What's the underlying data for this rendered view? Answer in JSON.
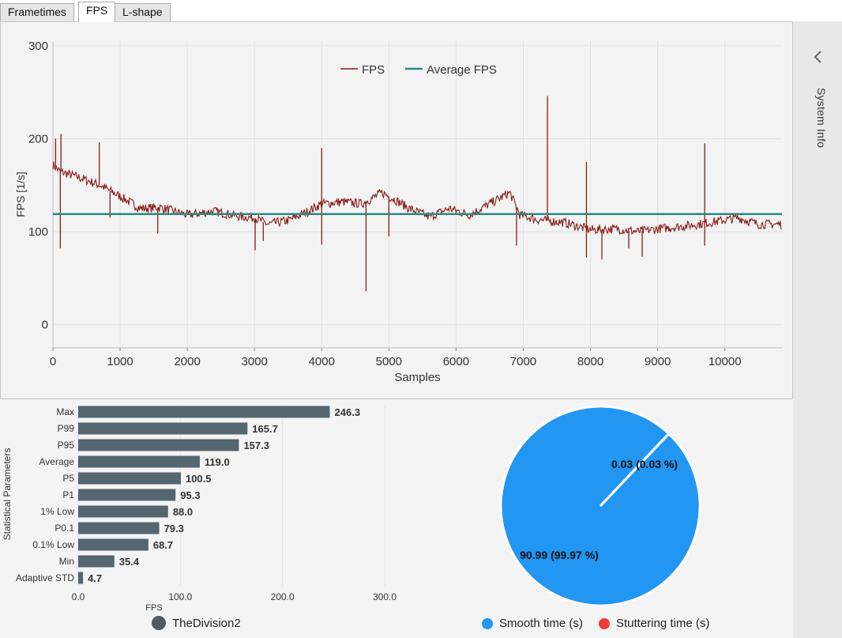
{
  "tabs": [
    {
      "label": "Frametimes",
      "active": false
    },
    {
      "label": "FPS",
      "active": true
    },
    {
      "label": "L-shape",
      "active": false
    }
  ],
  "side_panel": {
    "label": "System Info",
    "icon": "chevron-left-icon"
  },
  "colors": {
    "fps_line": "#8b1a1a",
    "average_line": "#2a8a80",
    "bar": "#546670",
    "smooth": "#2196f3",
    "stutter": "#ef3b36",
    "session_dot": "#4f5b62"
  },
  "chart_data": [
    {
      "id": "fps_timeline",
      "type": "line",
      "xlabel": "Samples",
      "ylabel": "FPS [1/s]",
      "xlim": [
        0,
        10850
      ],
      "ylim": [
        -25,
        305
      ],
      "xticks": [
        0,
        1000,
        2000,
        3000,
        4000,
        5000,
        6000,
        7000,
        8000,
        9000,
        10000
      ],
      "yticks": [
        0,
        100,
        200,
        300
      ],
      "grid": true,
      "legend_position": "top-center",
      "series": [
        {
          "name": "FPS",
          "style": "line",
          "approx_trend": {
            "x": [
              0,
              100,
              400,
              700,
              1000,
              1300,
              1600,
              2000,
              2400,
              2800,
              3000,
              3200,
              3500,
              3800,
              4000,
              4300,
              4600,
              4900,
              5100,
              5300,
              5600,
              5900,
              6200,
              6500,
              6800,
              6950,
              7200,
              7600,
              8000,
              8400,
              8700,
              9000,
              9400,
              9800,
              10200,
              10500,
              10850
            ],
            "y": [
              172,
              165,
              158,
              150,
              138,
              125,
              126,
              118,
              122,
              116,
              115,
              108,
              112,
              122,
              130,
              132,
              130,
              142,
              134,
              125,
              116,
              125,
              118,
              130,
              142,
              118,
              113,
              110,
              102,
              103,
              100,
              103,
              106,
              110,
              115,
              108,
              108
            ]
          },
          "spikes": [
            {
              "x": 40,
              "y": 200
            },
            {
              "x": 120,
              "y": 205
            },
            {
              "x": 110,
              "y": 82
            },
            {
              "x": 690,
              "y": 196
            },
            {
              "x": 850,
              "y": 115
            },
            {
              "x": 1560,
              "y": 98
            },
            {
              "x": 3010,
              "y": 80
            },
            {
              "x": 3130,
              "y": 90
            },
            {
              "x": 4000,
              "y": 190
            },
            {
              "x": 4000,
              "y": 86
            },
            {
              "x": 4660,
              "y": 36
            },
            {
              "x": 5000,
              "y": 95
            },
            {
              "x": 6900,
              "y": 85
            },
            {
              "x": 7360,
              "y": 246
            },
            {
              "x": 7940,
              "y": 175
            },
            {
              "x": 7940,
              "y": 72
            },
            {
              "x": 8170,
              "y": 70
            },
            {
              "x": 8570,
              "y": 82
            },
            {
              "x": 8770,
              "y": 73
            },
            {
              "x": 9700,
              "y": 195
            },
            {
              "x": 9700,
              "y": 85
            }
          ]
        },
        {
          "name": "Average FPS",
          "style": "flat",
          "y": 119.0
        }
      ]
    },
    {
      "id": "statistical_parameters",
      "type": "bar",
      "orientation": "horizontal",
      "xlabel": "FPS",
      "ylabel": "Statistical Parameters",
      "xlim": [
        0,
        300
      ],
      "xticks": [
        "0.0",
        "100.0",
        "200.0",
        "300.0"
      ],
      "categories": [
        "Max",
        "P99",
        "P95",
        "Average",
        "P5",
        "P1",
        "1% Low",
        "P0.1",
        "0.1% Low",
        "Min",
        "Adaptive STD"
      ],
      "values": [
        246.3,
        165.7,
        157.3,
        119.0,
        100.5,
        95.3,
        88.0,
        79.3,
        68.7,
        35.4,
        4.7
      ],
      "value_labels": [
        "246.3",
        "165.7",
        "157.3",
        "119.0",
        "100.5",
        "95.3",
        "88.0",
        "79.3",
        "68.7",
        "35.4",
        "4.7"
      ],
      "legend": {
        "name": "TheDivision2"
      }
    },
    {
      "id": "stutter_pie",
      "type": "pie",
      "slices": [
        {
          "name": "Smooth time (s)",
          "value": 90.99,
          "label": "90.99 (99.97 %)"
        },
        {
          "name": "Stuttering time (s)",
          "value": 0.03,
          "label": "0.03 (0.03 %)"
        }
      ],
      "legend_position": "bottom"
    }
  ]
}
